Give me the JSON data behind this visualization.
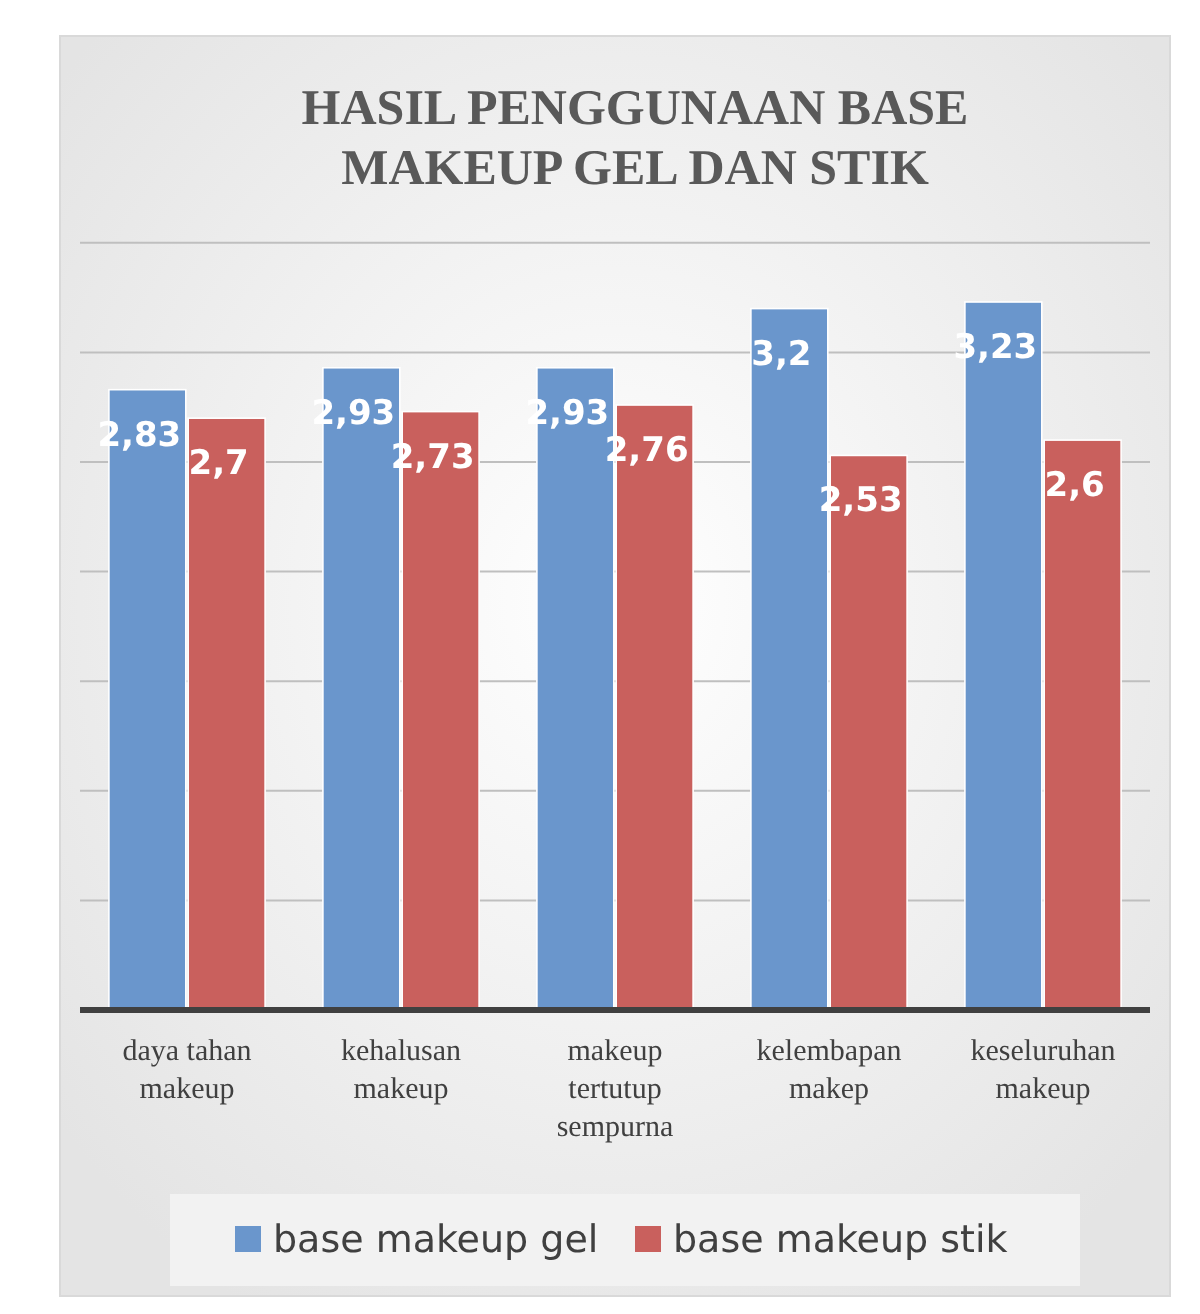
{
  "chart_data": {
    "type": "bar",
    "title": "HASIL PENGGUNAAN BASE MAKEUP GEL DAN STIK",
    "categories": [
      "daya tahan makeup",
      "kehalusan makeup",
      "makeup tertutup sempurna",
      "kelembapan makep",
      "keseluruhan makeup"
    ],
    "series": [
      {
        "name": "base makeup gel",
        "color": "#6a96cc",
        "values": [
          2.83,
          2.93,
          2.93,
          3.2,
          3.23
        ],
        "value_labels": [
          "2,83",
          "2,93",
          "2,93",
          "3,2",
          "3,23"
        ]
      },
      {
        "name": "base makeup stik",
        "color": "#c9605d",
        "values": [
          2.7,
          2.73,
          2.76,
          2.53,
          2.6
        ],
        "value_labels": [
          "2,7",
          "2,73",
          "2,76",
          "2,53",
          "2,6"
        ]
      }
    ],
    "grid": "y",
    "tick_labels": "x",
    "legend": "bottom"
  }
}
